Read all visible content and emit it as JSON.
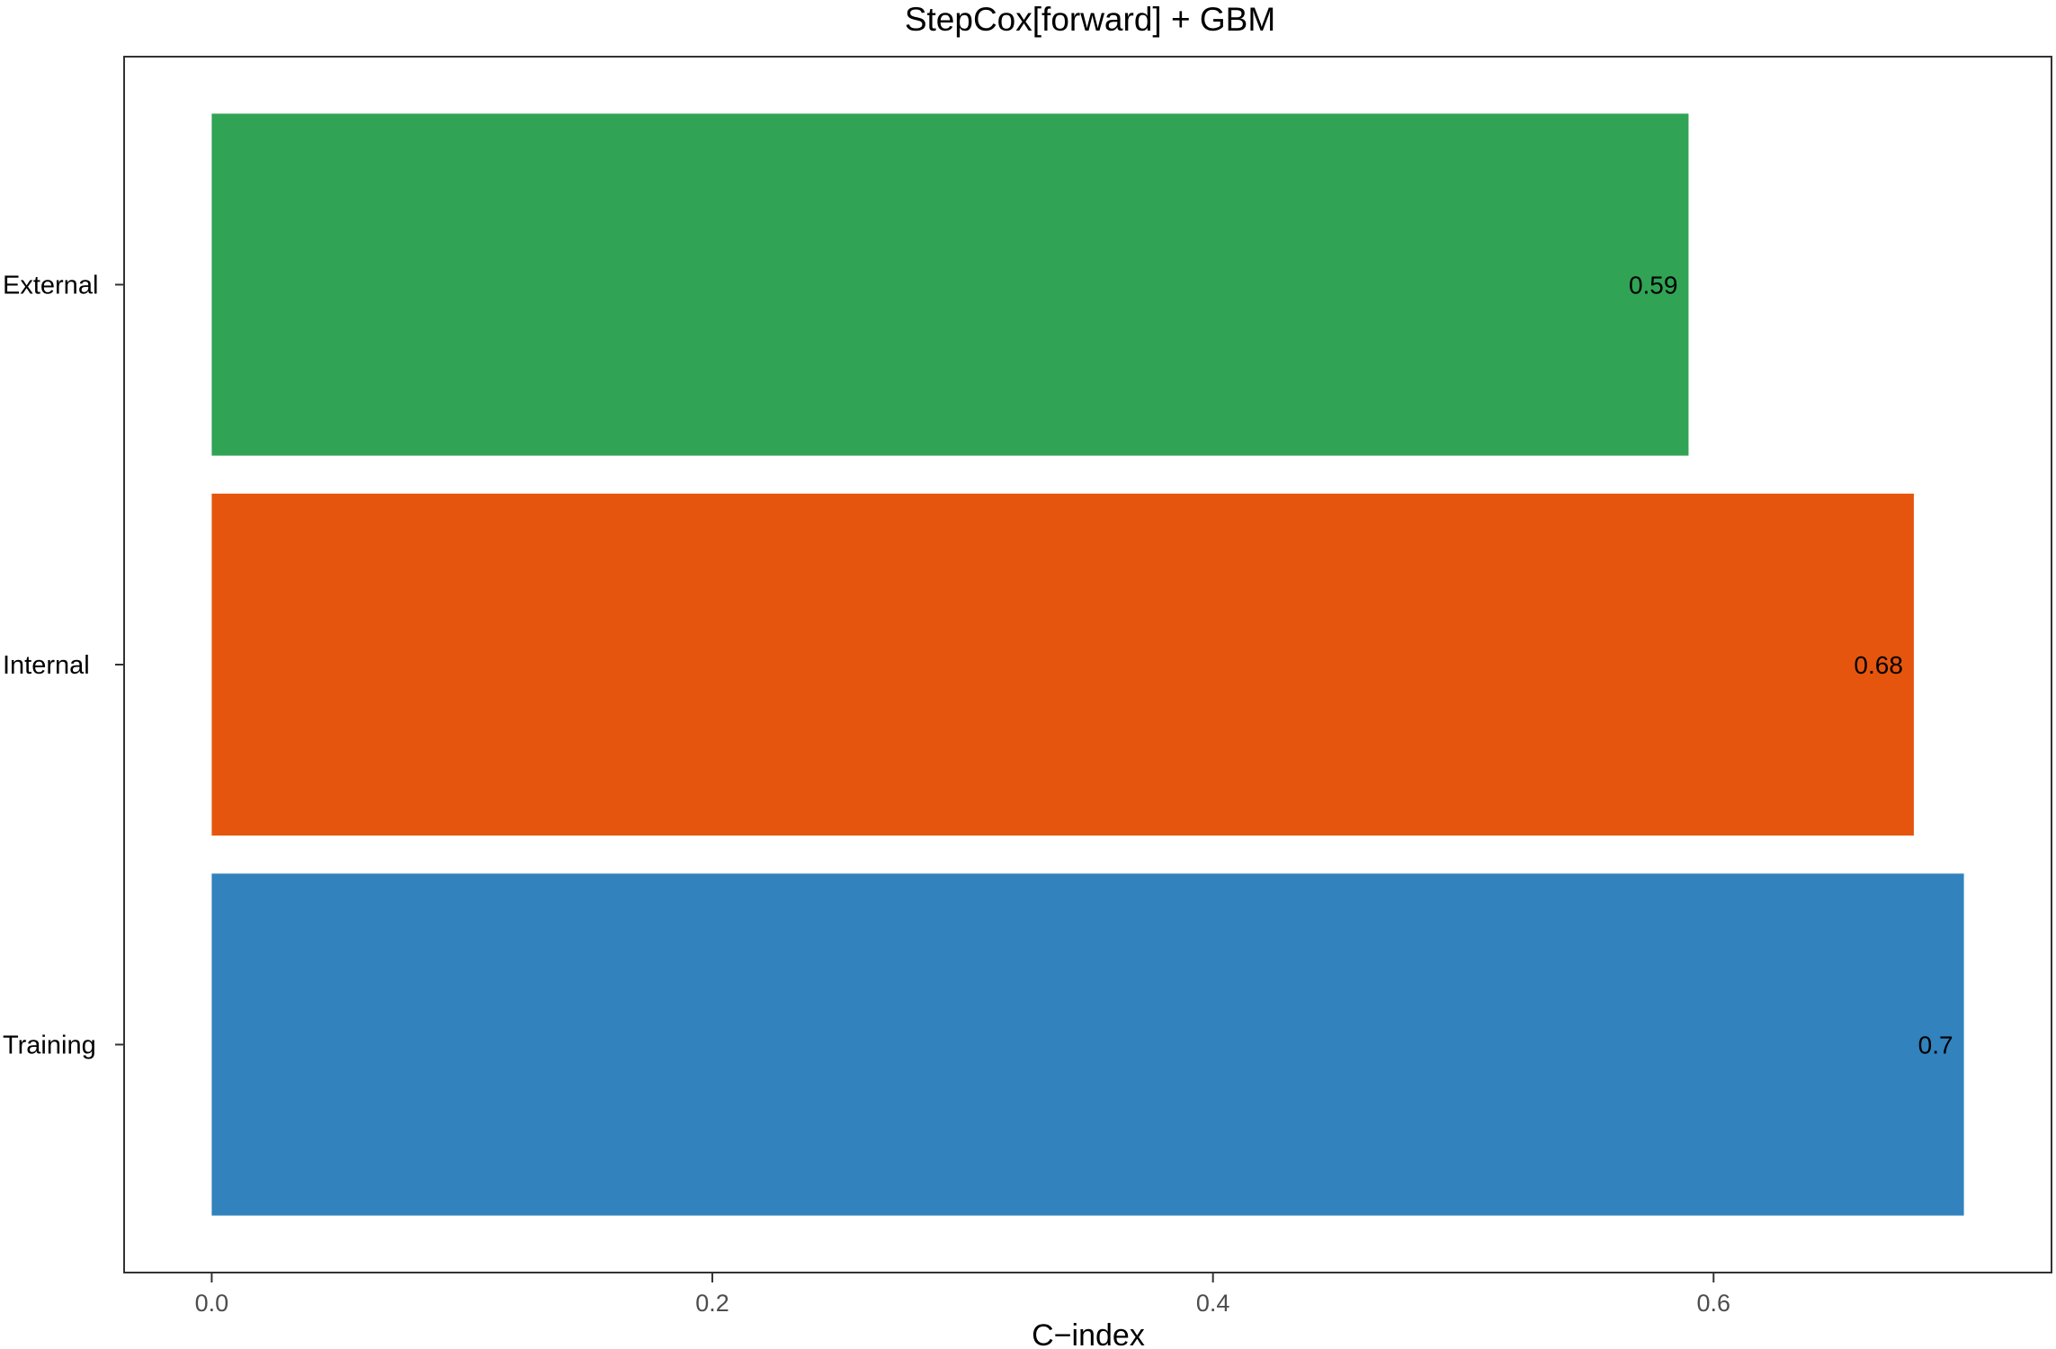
{
  "chart_data": {
    "type": "bar",
    "orientation": "horizontal",
    "title": "StepCox[forward] + GBM",
    "xlabel": "C−index",
    "ylabel": "",
    "categories": [
      "External",
      "Internal",
      "Training"
    ],
    "values": [
      0.59,
      0.68,
      0.7
    ],
    "data_labels": [
      "0.59",
      "0.68",
      "0.7"
    ],
    "colors": [
      "#31a354",
      "#e6550d",
      "#3182bd"
    ],
    "xlim": [
      -0.035,
      0.735
    ],
    "xticks": [
      0.0,
      0.2,
      0.4,
      0.6
    ],
    "xtick_labels": [
      "0.0",
      "0.2",
      "0.4",
      "0.6"
    ],
    "grid": false,
    "legend": "none"
  }
}
